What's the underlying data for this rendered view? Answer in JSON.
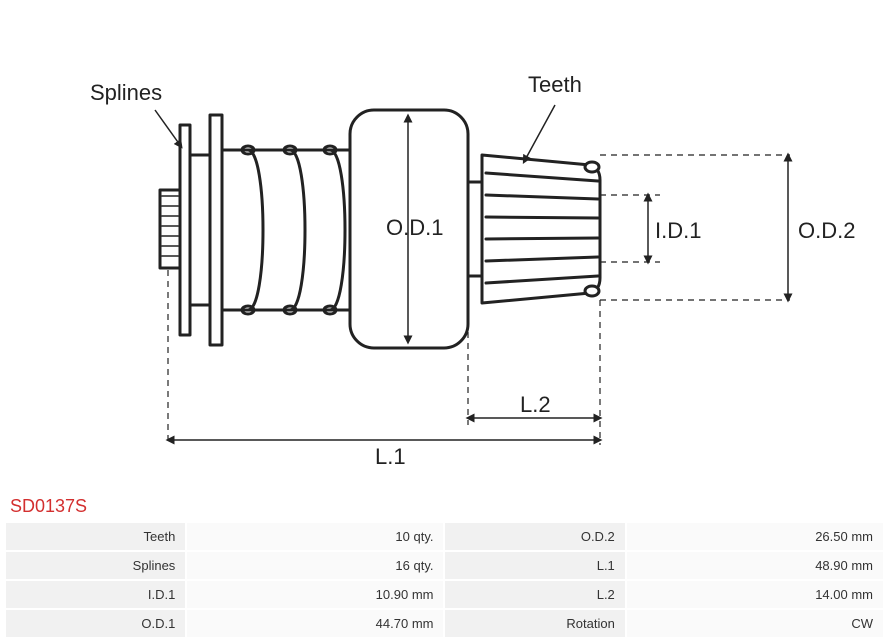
{
  "product_code": "SD0137S",
  "diagram": {
    "type": "engineering-diagram",
    "labels": {
      "splines": "Splines",
      "teeth": "Teeth",
      "od1": "O.D.1",
      "od2": "O.D.2",
      "id1": "I.D.1",
      "l1": "L.1",
      "l2": "L.2"
    },
    "colors": {
      "stroke": "#222222",
      "label": "#222222",
      "dimension": "#222222",
      "background": "#ffffff"
    },
    "stroke_width_main": 3,
    "stroke_width_dim": 1.2,
    "font_family": "Arial",
    "label_fontsize": 22,
    "dim_fontsize": 22
  },
  "specs": {
    "rows": [
      {
        "label1": "Teeth",
        "value1": "10 qty.",
        "label2": "O.D.2",
        "value2": "26.50 mm"
      },
      {
        "label1": "Splines",
        "value1": "16 qty.",
        "label2": "L.1",
        "value2": "48.90 mm"
      },
      {
        "label1": "I.D.1",
        "value1": "10.90 mm",
        "label2": "L.2",
        "value2": "14.00 mm"
      },
      {
        "label1": "O.D.1",
        "value1": "44.70 mm",
        "label2": "Rotation",
        "value2": "CW"
      }
    ],
    "label_bg": "#f1f1f1",
    "value_bg": "#fafafa",
    "text_color": "#333333",
    "code_color": "#d32f2f"
  }
}
